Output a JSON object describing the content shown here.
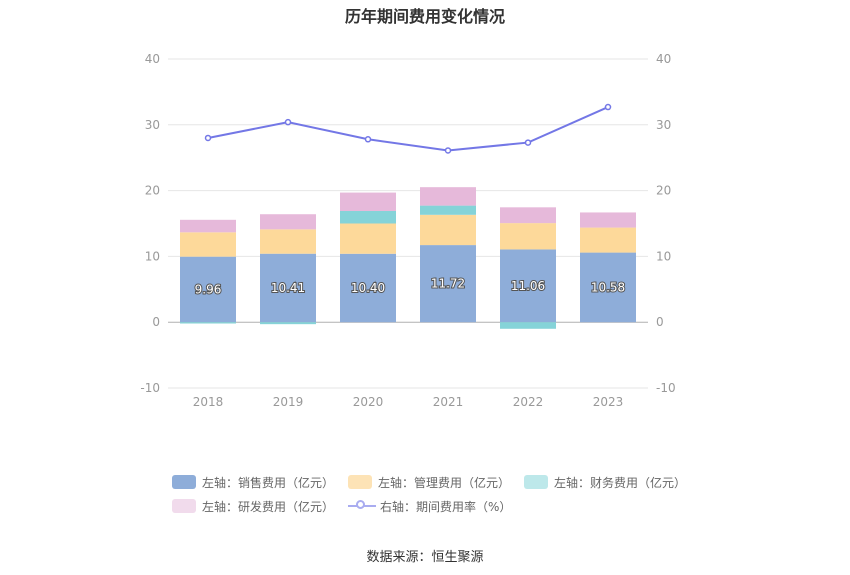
{
  "title": "历年期间费用变化情况",
  "source": "数据来源：恒生聚源",
  "colors": {
    "sales": "#8eadd9",
    "admin": "#fdd99a",
    "finance": "#85d3d8",
    "rnd": "#e6b9da",
    "rate": "#7377e6",
    "grid": "#e6e6e6",
    "axis_text": "#999999"
  },
  "legend": {
    "sales": "左轴：销售费用（亿元）",
    "admin": "左轴：管理费用（亿元）",
    "finance": "左轴：财务费用（亿元）",
    "rnd": "左轴：研发费用（亿元）",
    "rate": "右轴：期间费用率（%）"
  },
  "chart_data": {
    "type": "bar",
    "stacked": true,
    "categories": [
      "2018",
      "2019",
      "2020",
      "2021",
      "2022",
      "2023"
    ],
    "left_axis": {
      "ylim": [
        -10,
        40
      ],
      "ticks": [
        -10,
        0,
        10,
        20,
        30,
        40
      ]
    },
    "right_axis": {
      "ylim": [
        -10,
        40
      ],
      "ticks": [
        -10,
        0,
        10,
        20,
        30,
        40
      ]
    },
    "series": [
      {
        "name": "左轴：销售费用（亿元）",
        "key": "sales",
        "axis": "left",
        "type": "bar",
        "values": [
          9.96,
          10.41,
          10.4,
          11.72,
          11.06,
          10.58
        ],
        "labels": [
          "9.96",
          "10.41",
          "10.40",
          "11.72",
          "11.06",
          "10.58"
        ]
      },
      {
        "name": "左轴：管理费用（亿元）",
        "key": "admin",
        "axis": "left",
        "type": "bar",
        "values": [
          3.7,
          3.7,
          4.6,
          4.6,
          4.0,
          3.8
        ]
      },
      {
        "name": "左轴：财务费用（亿元）",
        "key": "finance",
        "axis": "left",
        "type": "bar",
        "values": [
          -0.2,
          -0.3,
          1.9,
          1.4,
          -1.0,
          0.0
        ]
      },
      {
        "name": "左轴：研发费用（亿元）",
        "key": "rnd",
        "axis": "left",
        "type": "bar",
        "values": [
          1.9,
          2.3,
          2.8,
          2.8,
          2.4,
          2.3
        ]
      },
      {
        "name": "右轴：期间费用率（%）",
        "key": "rate",
        "axis": "right",
        "type": "line",
        "values": [
          28.0,
          30.4,
          27.8,
          26.1,
          27.3,
          32.7
        ]
      }
    ]
  }
}
